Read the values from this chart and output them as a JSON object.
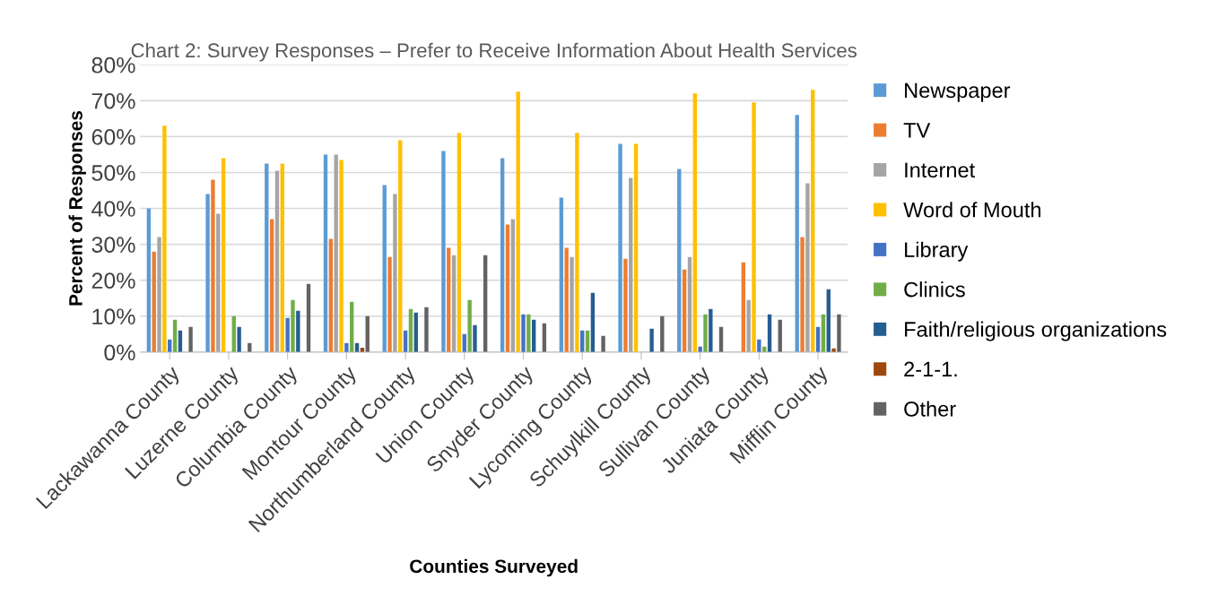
{
  "chart_data": {
    "type": "bar",
    "title": "Chart 2: Survey Responses – Prefer to Receive Information About Health Services",
    "xlabel": "Counties Surveyed",
    "ylabel": "Percent of Responses",
    "categories": [
      "Lackawanna County",
      "Luzerne County",
      "Columbia County",
      "Montour County",
      "Northumberland County",
      "Union County",
      "Snyder County",
      "Lycoming County",
      "Schuylkill County",
      "Sullivan County",
      "Juniata County",
      "Mifflin County"
    ],
    "series": [
      {
        "name": "Newspaper",
        "color": "#5b9bd5",
        "values": [
          40,
          44,
          52.5,
          55,
          46.5,
          56,
          54,
          43,
          58,
          51,
          null,
          66
        ]
      },
      {
        "name": "TV",
        "color": "#ed7d31",
        "values": [
          28,
          48,
          37,
          31.5,
          26.5,
          29,
          35.5,
          29,
          26,
          23,
          25,
          32
        ]
      },
      {
        "name": "Internet",
        "color": "#a5a5a5",
        "values": [
          32,
          38.5,
          50.5,
          55,
          44,
          27,
          37,
          26.5,
          48.5,
          26.5,
          14.5,
          47
        ]
      },
      {
        "name": "Word of Mouth",
        "color": "#ffc000",
        "values": [
          63,
          54,
          52.5,
          53.5,
          59,
          61,
          72.5,
          61,
          58,
          72,
          69.5,
          73
        ]
      },
      {
        "name": "Library",
        "color": "#4472c4",
        "values": [
          3.5,
          null,
          9.5,
          2.5,
          6,
          5,
          10.5,
          6,
          null,
          1.5,
          3.5,
          7
        ]
      },
      {
        "name": "Clinics",
        "color": "#70ad47",
        "values": [
          9,
          10,
          14.5,
          14,
          12,
          14.5,
          10.5,
          6,
          null,
          10.5,
          1.5,
          10.5
        ]
      },
      {
        "name": "Faith/religious organizations",
        "color": "#255e91",
        "values": [
          6,
          7,
          11.5,
          2.5,
          11,
          7.5,
          9,
          16.5,
          6.5,
          12,
          10.5,
          17.5
        ]
      },
      {
        "name": "2-1-1.",
        "color": "#9e480e",
        "values": [
          null,
          null,
          null,
          1.2,
          null,
          null,
          null,
          null,
          null,
          null,
          null,
          1
        ]
      },
      {
        "name": "Other",
        "color": "#636363",
        "values": [
          7,
          2.5,
          19,
          10,
          12.5,
          27,
          8,
          4.5,
          10,
          7,
          9,
          10.5
        ]
      }
    ],
    "ylim": [
      0,
      80
    ],
    "yticks": [
      {
        "value": 0,
        "label": "0%"
      },
      {
        "value": 10,
        "label": "10%"
      },
      {
        "value": 20,
        "label": "20%"
      },
      {
        "value": 30,
        "label": "30%"
      },
      {
        "value": 40,
        "label": "40%"
      },
      {
        "value": 50,
        "label": "50%"
      },
      {
        "value": 60,
        "label": "60%"
      },
      {
        "value": 70,
        "label": "70%"
      },
      {
        "value": 80,
        "label": "80%"
      }
    ],
    "grid": "y",
    "legend": "right"
  }
}
